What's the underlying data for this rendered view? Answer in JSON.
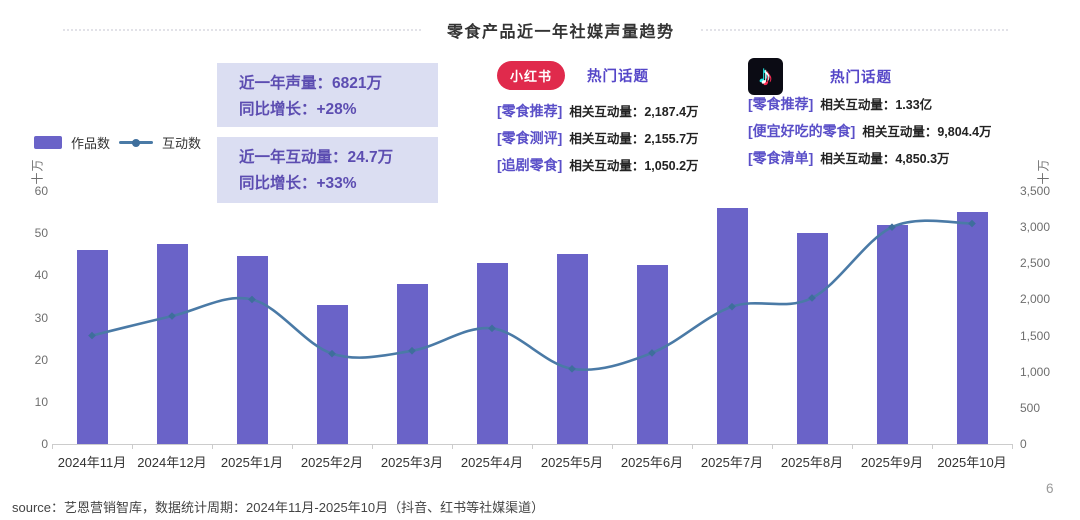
{
  "title": "零食产品近一年社媒声量趋势",
  "legend": {
    "bar_label": "作品数",
    "line_label": "互动数"
  },
  "stat_boxes": [
    {
      "line1": "近一年声量：6821万",
      "line2": "同比增长：+28%"
    },
    {
      "line1": "近一年互动量：24.7万",
      "line2": "同比增长：+33%"
    }
  ],
  "xiaohongshu": {
    "badge_label": "小红书",
    "section_title": "热门话题",
    "topics": [
      {
        "tag": "[零食推荐]",
        "engagement": "相关互动量：2,187.4万"
      },
      {
        "tag": "[零食测评]",
        "engagement": "相关互动量：2,155.7万"
      },
      {
        "tag": "[追剧零食]",
        "engagement": "相关互动量：1,050.2万"
      }
    ]
  },
  "douyin": {
    "icon": "douyin-logo",
    "section_title": "热门话题",
    "topics": [
      {
        "tag": "[零食推荐]",
        "engagement": "相关互动量：1.33亿"
      },
      {
        "tag": "[便宜好吃的零食]",
        "engagement": "相关互动量：9,804.4万"
      },
      {
        "tag": "[零食清单]",
        "engagement": "相关互动量：4,850.3万"
      }
    ]
  },
  "chart_data": {
    "type": "bar",
    "subtype": "bar+line combo, dual y-axis",
    "title": "零食产品近一年社媒声量趋势",
    "categories": [
      "2024年11月",
      "2024年12月",
      "2025年1月",
      "2025年2月",
      "2025年3月",
      "2025年4月",
      "2025年5月",
      "2025年6月",
      "2025年7月",
      "2025年8月",
      "2025年9月",
      "2025年10月"
    ],
    "series": [
      {
        "name": "作品数",
        "type": "bar",
        "y_axis": "left",
        "values": [
          46,
          47.5,
          44.5,
          33,
          38,
          43,
          45,
          42.5,
          56,
          50,
          52,
          55
        ]
      },
      {
        "name": "互动数",
        "type": "line",
        "y_axis": "right",
        "values": [
          1500,
          1770,
          2000,
          1250,
          1290,
          1600,
          1040,
          1260,
          1900,
          2020,
          3000,
          3050
        ]
      }
    ],
    "left_axis": {
      "name": "十万",
      "ticks": [
        "60",
        "50",
        "40",
        "30",
        "20",
        "10",
        "0"
      ],
      "max": 60,
      "min": 0
    },
    "right_axis": {
      "name": "十万",
      "ticks": [
        "3,500",
        "3,000",
        "2,500",
        "2,000",
        "1,500",
        "1,000",
        "500",
        "0"
      ],
      "max": 3500,
      "min": 0
    },
    "grid": false,
    "legend_position": "top-left",
    "colors": {
      "bar": "#6a63c8",
      "line": "#4a7aa6",
      "marker": "#3e6e9c"
    }
  },
  "footer": {
    "source": "source：艺恩营销智库，数据统计周期：2024年11月-2025年10月（抖音、红书等社媒渠道）",
    "page_number": "6"
  }
}
